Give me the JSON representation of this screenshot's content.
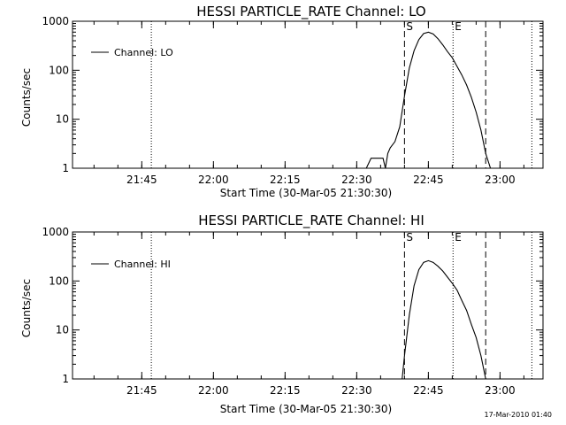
{
  "footer": {
    "timestamp": "17-Mar-2010 01:40"
  },
  "chart_data": [
    {
      "type": "line",
      "title": "HESSI PARTICLE_RATE Channel: LO",
      "xlabel": "Start Time (30-Mar-05 21:30:30)",
      "ylabel": "Counts/sec",
      "y_scale": "log",
      "ylim": [
        1,
        1000
      ],
      "xlim": [
        "21:30:30",
        "23:09:00"
      ],
      "x_ticks": [
        "21:45",
        "22:00",
        "22:15",
        "22:30",
        "22:45",
        "23:00"
      ],
      "y_ticks": [
        "1",
        "10",
        "100",
        "1000"
      ],
      "grid": false,
      "legend": {
        "placement": "top-left",
        "entries": [
          "Channel: LO"
        ]
      },
      "markers": {
        "S": "22:40:00",
        "E": "22:50:10",
        "dashed_lines": [
          "22:40:00",
          "22:57:00"
        ],
        "dotted_lines": [
          "21:47:00",
          "22:50:10",
          "23:06:40"
        ]
      },
      "series": [
        {
          "name": "Channel: LO",
          "x": [
            "22:32:00",
            "22:33:00",
            "22:33:30",
            "22:35:30",
            "22:36:00",
            "22:36:30",
            "22:37:00",
            "22:38:00",
            "22:39:00",
            "22:40:00",
            "22:41:00",
            "22:42:00",
            "22:43:00",
            "22:44:00",
            "22:45:00",
            "22:46:00",
            "22:47:00",
            "22:48:00",
            "22:49:00",
            "22:50:00",
            "22:51:00",
            "22:52:00",
            "22:53:00",
            "22:54:00",
            "22:55:00",
            "22:56:00",
            "22:57:00",
            "22:58:00"
          ],
          "y": [
            1,
            1.6,
            1.6,
            1.6,
            1.0,
            2.0,
            2.6,
            3.5,
            7,
            30,
            110,
            250,
            420,
            560,
            600,
            550,
            440,
            330,
            240,
            180,
            120,
            80,
            50,
            28,
            14,
            6,
            2,
            1
          ]
        }
      ]
    },
    {
      "type": "line",
      "title": "HESSI PARTICLE_RATE Channel: HI",
      "xlabel": "Start Time (30-Mar-05 21:30:30)",
      "ylabel": "Counts/sec",
      "y_scale": "log",
      "ylim": [
        1,
        1000
      ],
      "xlim": [
        "21:30:30",
        "23:09:00"
      ],
      "x_ticks": [
        "21:45",
        "22:00",
        "22:15",
        "22:30",
        "22:45",
        "23:00"
      ],
      "y_ticks": [
        "1",
        "10",
        "100",
        "1000"
      ],
      "grid": false,
      "legend": {
        "placement": "top-left",
        "entries": [
          "Channel: HI"
        ]
      },
      "markers": {
        "S": "22:40:00",
        "E": "22:50:10",
        "dashed_lines": [
          "22:40:00",
          "22:57:00"
        ],
        "dotted_lines": [
          "21:47:00",
          "22:50:10",
          "23:06:40"
        ]
      },
      "series": [
        {
          "name": "Channel: HI",
          "x": [
            "22:39:30",
            "22:40:00",
            "22:41:00",
            "22:42:00",
            "22:43:00",
            "22:44:00",
            "22:45:00",
            "22:46:00",
            "22:47:00",
            "22:48:00",
            "22:49:00",
            "22:50:00",
            "22:51:00",
            "22:52:00",
            "22:53:00",
            "22:54:00",
            "22:55:00",
            "22:56:00",
            "22:57:00"
          ],
          "y": [
            1,
            3,
            20,
            80,
            170,
            240,
            260,
            240,
            200,
            160,
            120,
            90,
            65,
            40,
            25,
            13,
            7,
            3,
            1
          ]
        }
      ]
    }
  ]
}
